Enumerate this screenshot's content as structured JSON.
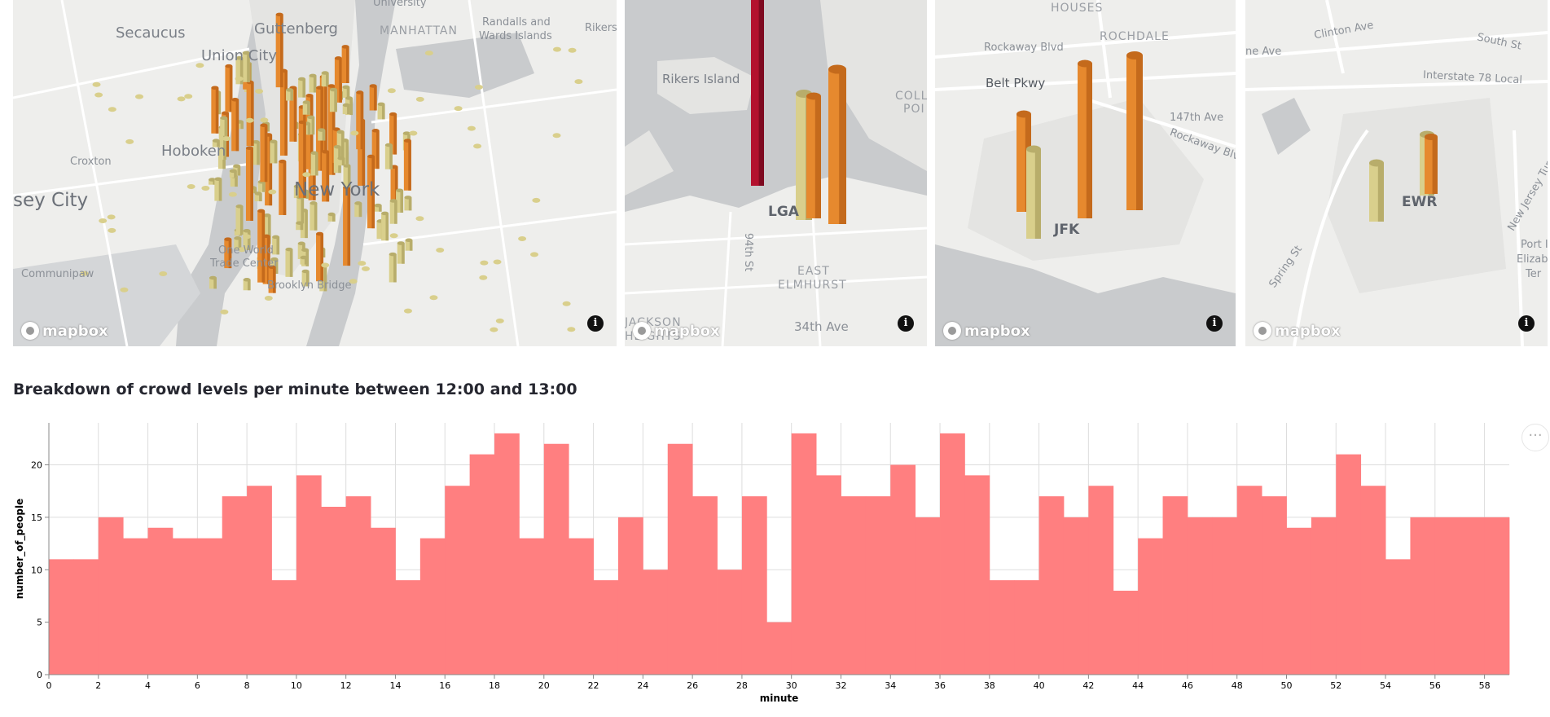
{
  "maps": [
    {
      "name": "manhattan",
      "labels": [
        "Secaucus",
        "Guttenberg",
        "Union City",
        "Randalls and",
        "Wards Islands",
        "Rikers",
        "Hoboken",
        "Croxton",
        "sey City",
        "New York",
        "Communipaw",
        "One World",
        "Trade Center",
        "Brooklyn Bridge",
        "University",
        "MANHATTAN"
      ],
      "logo": "mapbox",
      "info_icon": "i"
    },
    {
      "name": "laguardia",
      "labels": [
        "Rikers Island",
        "COLL",
        "POI",
        "LGA",
        "94th St",
        "EAST",
        "ELMHURST",
        "JACKSON",
        "HEIGHTS",
        "34th Ave"
      ],
      "logo": "mapbox",
      "info_icon": "i"
    },
    {
      "name": "jfk",
      "labels": [
        "HOUSES",
        "ROCHDALE",
        "Rockaway Blvd",
        "Belt Pkwy",
        "147th Ave",
        "Rockaway Blv",
        "JFK"
      ],
      "logo": "mapbox",
      "info_icon": "i"
    },
    {
      "name": "newark",
      "labels": [
        "Clinton Ave",
        "South St",
        "ne Ave",
        "Interstate 78 Local",
        "EWR",
        "Spring St",
        "New Jersey Turn",
        "Port I",
        "Elizabe",
        "Ter"
      ],
      "logo": "mapbox",
      "info_icon": "i"
    }
  ],
  "chart_title": "Breakdown of crowd levels per minute between 12:00 and 13:00",
  "menu_icon": "···",
  "colors": {
    "bar": "#ff7f80",
    "map_bg": "#eeeeec",
    "water": "#c9cbcd",
    "column_light": "#d9cf8c",
    "column_orange": "#e6892e",
    "column_red": "#b3112e"
  },
  "chart_data": {
    "type": "bar",
    "title": "Breakdown of crowd levels per minute between 12:00 and 13:00",
    "xlabel": "minute",
    "ylabel": "number_of_people",
    "x_ticks": [
      0,
      2,
      4,
      6,
      8,
      10,
      12,
      14,
      16,
      18,
      20,
      22,
      24,
      26,
      28,
      30,
      32,
      34,
      36,
      38,
      40,
      42,
      44,
      46,
      48,
      50,
      52,
      54,
      56,
      58
    ],
    "y_ticks": [
      0,
      5,
      10,
      15,
      20
    ],
    "xlim": [
      0,
      59
    ],
    "ylim": [
      0,
      24
    ],
    "grid": true,
    "x": [
      0,
      1,
      2,
      3,
      4,
      5,
      6,
      7,
      8,
      9,
      10,
      11,
      12,
      13,
      14,
      15,
      16,
      17,
      18,
      19,
      20,
      21,
      22,
      23,
      24,
      25,
      26,
      27,
      28,
      29,
      30,
      31,
      32,
      33,
      34,
      35,
      36,
      37,
      38,
      39,
      40,
      41,
      42,
      43,
      44,
      45,
      46,
      47,
      48,
      49,
      50,
      51,
      52,
      53,
      54,
      55,
      56,
      57,
      58
    ],
    "values": [
      11,
      11,
      15,
      13,
      14,
      13,
      13,
      17,
      18,
      9,
      19,
      16,
      17,
      14,
      9,
      13,
      18,
      21,
      23,
      13,
      22,
      13,
      9,
      15,
      10,
      22,
      17,
      10,
      17,
      5,
      23,
      19,
      17,
      17,
      20,
      15,
      23,
      19,
      9,
      9,
      17,
      15,
      18,
      8,
      13,
      17,
      15,
      15,
      18,
      17,
      14,
      15,
      21,
      18,
      11,
      15,
      15,
      15,
      15
    ]
  }
}
